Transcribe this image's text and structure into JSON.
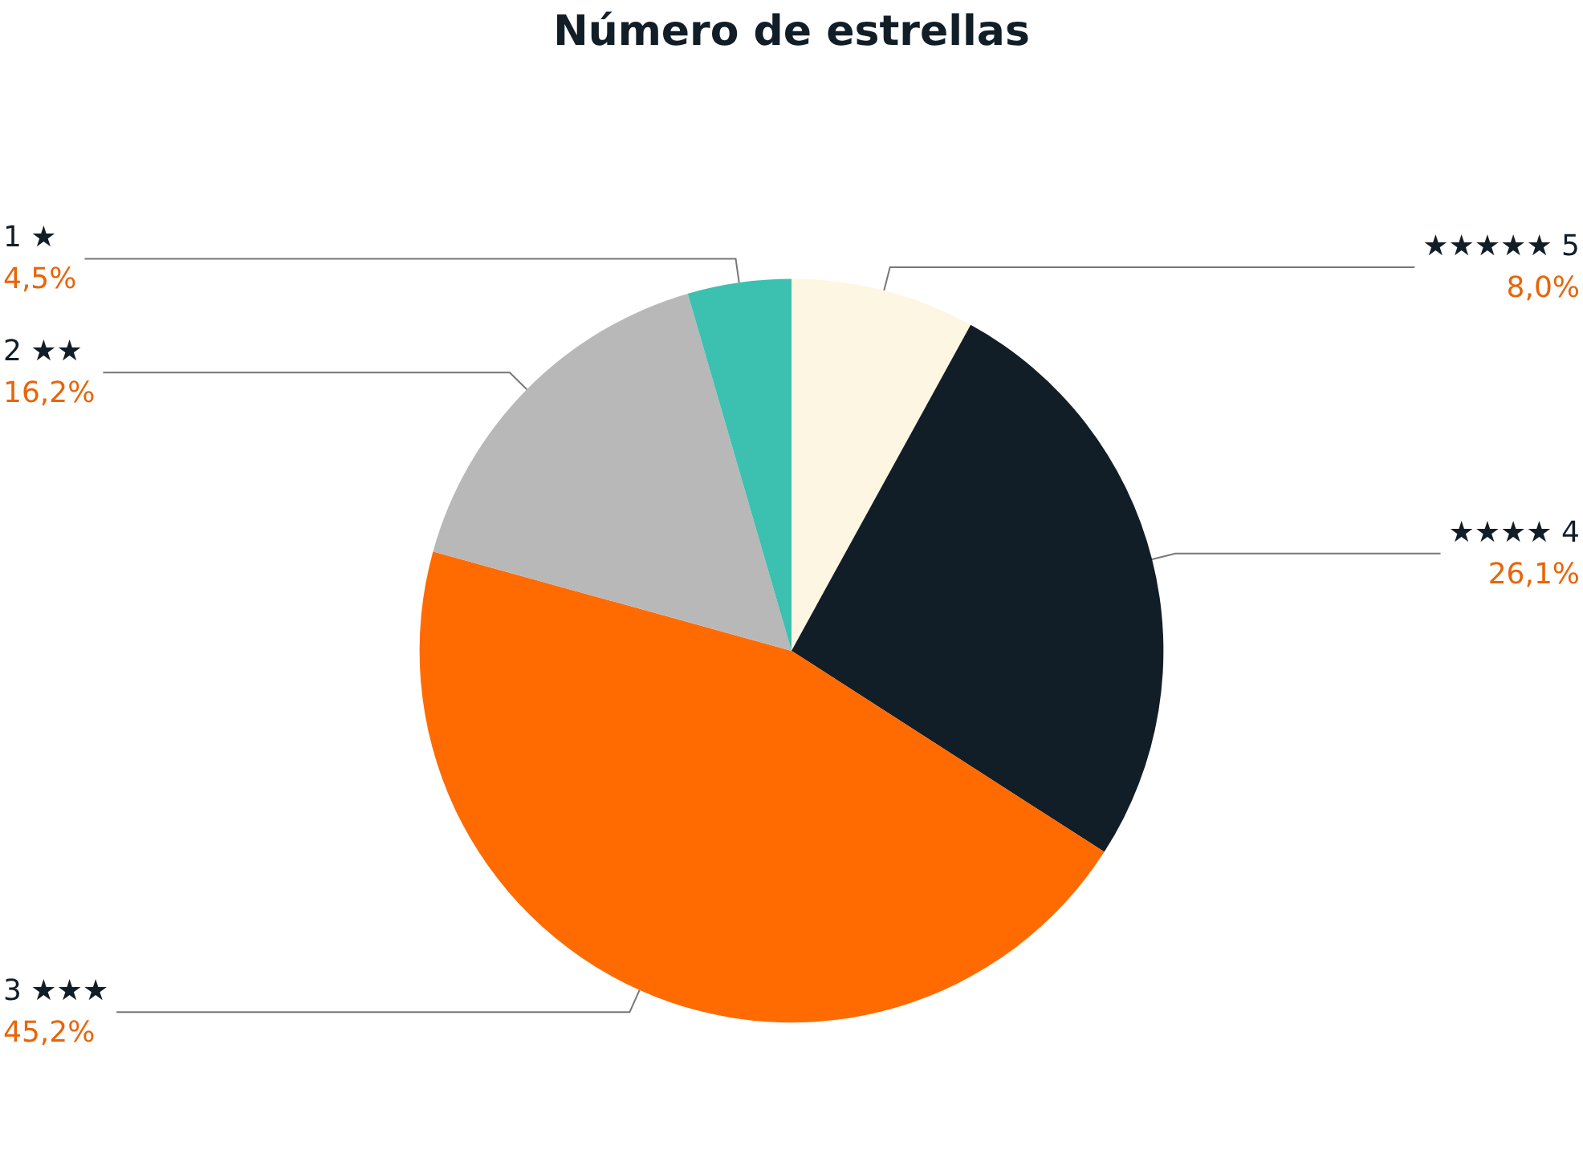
{
  "chart_data": {
    "type": "pie",
    "title": "Número de estrellas",
    "categories": [
      "★★★★★ 5",
      "★★★★ 4",
      "3 ★★★",
      "2 ★★",
      "1 ★"
    ],
    "values": [
      8.0,
      26.1,
      45.2,
      16.2,
      4.5
    ],
    "colors": [
      "#fdf6e3",
      "#121e27",
      "#ff6b00",
      "#b8b8b8",
      "#3cc0b0"
    ],
    "value_labels": [
      "8,0%",
      "26,1%",
      "45,2%",
      "16,2%",
      "4,5%"
    ],
    "legend": false
  }
}
